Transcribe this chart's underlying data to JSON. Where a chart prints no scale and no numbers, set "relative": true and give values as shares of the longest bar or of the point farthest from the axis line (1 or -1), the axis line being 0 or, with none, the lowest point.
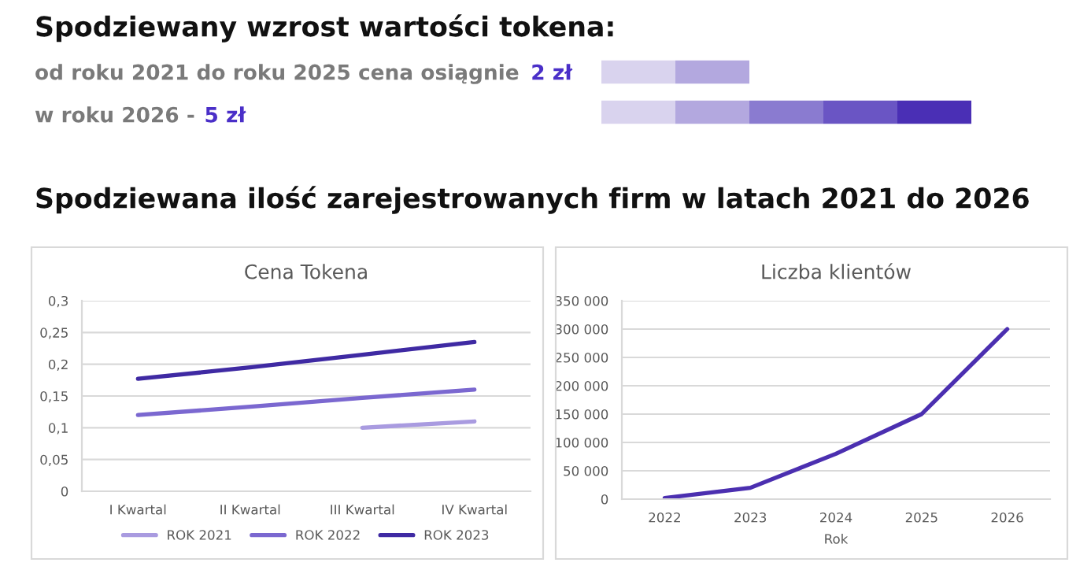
{
  "chart_data": [
    {
      "type": "bar",
      "orientation": "horizontal",
      "stacked": true,
      "relative": true,
      "title": "Spodziewany wzrost wartości tokena:",
      "annotations": [
        "od roku 2021 do roku 2025 cena osiągnie",
        "2 zł",
        "w roku 2026 -",
        "5 zł",
        "Spodziewana ilość zarejestrowanych firm w latach 2021 do 2026"
      ],
      "categories": [
        null,
        null
      ],
      "tick_labels": false,
      "series": [
        {
          "color": "#d9d3ee",
          "values": [
            0.2,
            0.2
          ]
        },
        {
          "color": "#b3a8df",
          "values": [
            0.2,
            0.2
          ]
        },
        {
          "color": "#8a7bd0",
          "values": [
            null,
            0.2
          ]
        },
        {
          "color": "#6a55c4",
          "values": [
            null,
            0.2
          ]
        },
        {
          "color": "#4a2fb5",
          "values": [
            null,
            0.2
          ]
        }
      ]
    },
    {
      "type": "line",
      "title": "Cena Tokena",
      "categories": [
        "I Kwartal",
        "II Kwartal",
        "III Kwartal",
        "IV Kwartal"
      ],
      "ylim": [
        0,
        0.3
      ],
      "yticks": [
        0,
        {
          "value": 0.05,
          "label": "0,05"
        },
        {
          "value": 0.1,
          "label": "0,1"
        },
        {
          "value": 0.15,
          "label": "0,15"
        },
        {
          "value": 0.2,
          "label": "0,2"
        },
        {
          "value": 0.25,
          "label": "0,25"
        },
        {
          "value": 0.3,
          "label": "0,3"
        }
      ],
      "grid": "y",
      "legend": "bottom",
      "series": [
        {
          "name": "ROK 2021",
          "color": "#a99be0",
          "values": [
            null,
            null,
            0.1,
            0.11
          ]
        },
        {
          "name": "ROK 2022",
          "color": "#7b68d0",
          "values": [
            0.12,
            0.133,
            0.147,
            0.16
          ]
        },
        {
          "name": "ROK 2023",
          "color": "#3f2aa3",
          "values": [
            0.177,
            0.195,
            0.215,
            0.235
          ]
        }
      ]
    },
    {
      "type": "line",
      "title": "Liczba klientów",
      "xlabel": "Rok",
      "categories": [
        "2022",
        "2023",
        "2024",
        "2025",
        "2026"
      ],
      "ylim": [
        0,
        350000
      ],
      "yticks": [
        0,
        {
          "value": 50000,
          "label": "50 000"
        },
        {
          "value": 100000,
          "label": "100 000"
        },
        {
          "value": 150000,
          "label": "150 000"
        },
        {
          "value": 200000,
          "label": "200 000"
        },
        {
          "value": 250000,
          "label": "250 000"
        },
        {
          "value": 300000,
          "label": "300 000"
        },
        {
          "value": 350000,
          "label": "350 000"
        }
      ],
      "grid": "y",
      "series": [
        {
          "color": "#4b2fb0",
          "values": [
            2000,
            20000,
            80000,
            150000,
            300000
          ]
        }
      ]
    }
  ]
}
